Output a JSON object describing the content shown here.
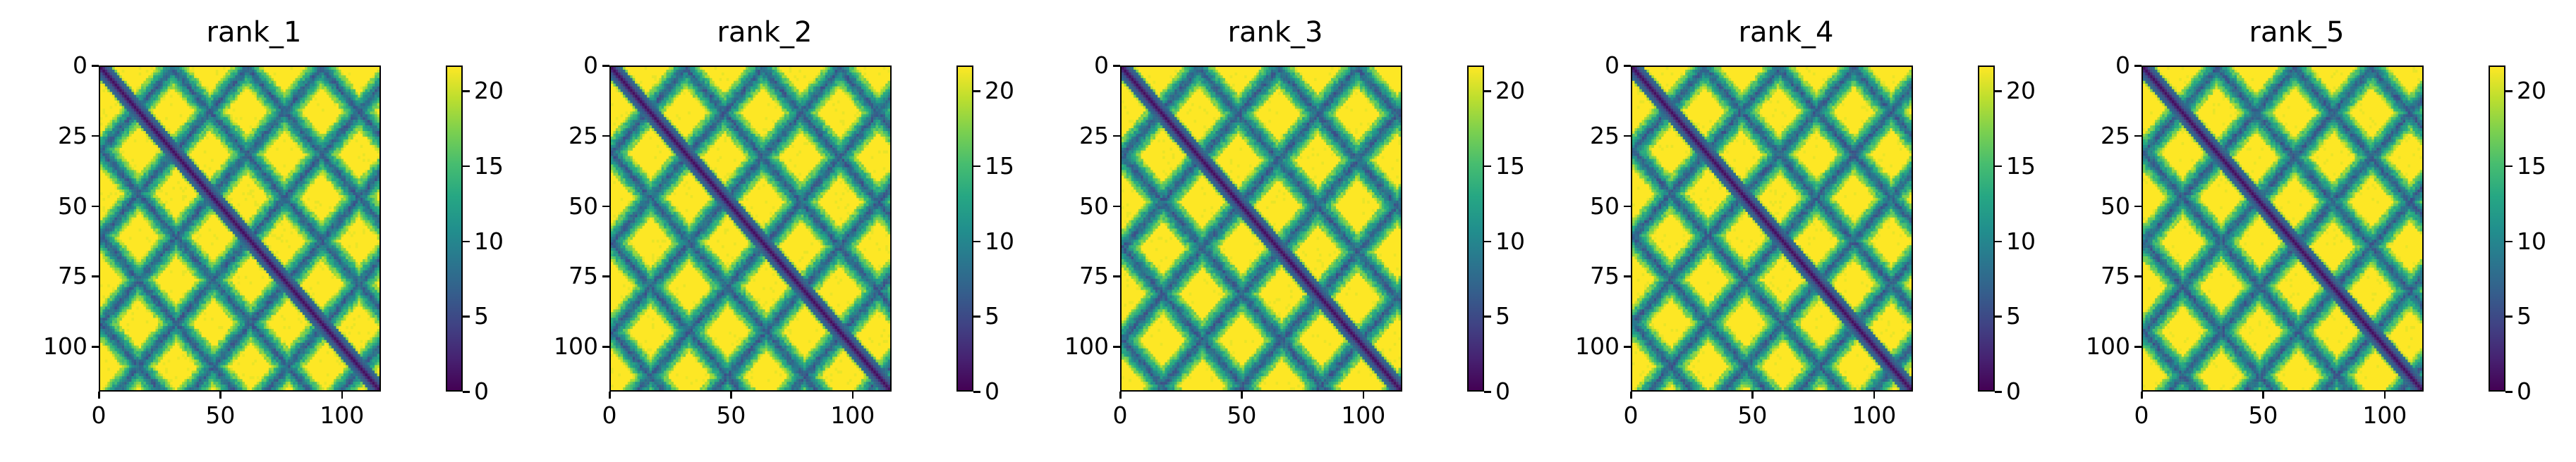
{
  "chart_data": [
    {
      "type": "heatmap",
      "title": "rank_1",
      "seed": 11,
      "x_ticks": [
        "0",
        "50",
        "100"
      ],
      "y_ticks": [
        "0",
        "25",
        "50",
        "75",
        "100"
      ],
      "colorbar_ticks": [
        "0",
        "5",
        "10",
        "15",
        "20"
      ],
      "xlim": [
        0,
        116
      ],
      "ylim": [
        116,
        0
      ],
      "vmin": 0,
      "vmax": 21.7,
      "size": 116,
      "colormap": "viridis"
    },
    {
      "type": "heatmap",
      "title": "rank_2",
      "seed": 23,
      "x_ticks": [
        "0",
        "50",
        "100"
      ],
      "y_ticks": [
        "0",
        "25",
        "50",
        "75",
        "100"
      ],
      "colorbar_ticks": [
        "0",
        "5",
        "10",
        "15",
        "20"
      ],
      "xlim": [
        0,
        116
      ],
      "ylim": [
        116,
        0
      ],
      "vmin": 0,
      "vmax": 21.7,
      "size": 116,
      "colormap": "viridis"
    },
    {
      "type": "heatmap",
      "title": "rank_3",
      "seed": 37,
      "x_ticks": [
        "0",
        "50",
        "100"
      ],
      "y_ticks": [
        "0",
        "25",
        "50",
        "75",
        "100"
      ],
      "colorbar_ticks": [
        "0",
        "5",
        "10",
        "15",
        "20"
      ],
      "xlim": [
        0,
        116
      ],
      "ylim": [
        116,
        0
      ],
      "vmin": 0,
      "vmax": 21.7,
      "size": 116,
      "colormap": "viridis"
    },
    {
      "type": "heatmap",
      "title": "rank_4",
      "seed": 41,
      "x_ticks": [
        "0",
        "50",
        "100"
      ],
      "y_ticks": [
        "0",
        "25",
        "50",
        "75",
        "100"
      ],
      "colorbar_ticks": [
        "0",
        "5",
        "10",
        "15",
        "20"
      ],
      "xlim": [
        0,
        116
      ],
      "ylim": [
        116,
        0
      ],
      "vmin": 0,
      "vmax": 21.7,
      "size": 116,
      "colormap": "viridis"
    },
    {
      "type": "heatmap",
      "title": "rank_5",
      "seed": 53,
      "x_ticks": [
        "0",
        "50",
        "100"
      ],
      "y_ticks": [
        "0",
        "25",
        "50",
        "75",
        "100"
      ],
      "colorbar_ticks": [
        "0",
        "5",
        "10",
        "15",
        "20"
      ],
      "xlim": [
        0,
        116
      ],
      "ylim": [
        116,
        0
      ],
      "vmin": 0,
      "vmax": 21.7,
      "size": 116,
      "colormap": "viridis"
    }
  ],
  "colors": {
    "viridis_low": "#440154",
    "viridis_mid": "#21918c",
    "viridis_high": "#fde725"
  }
}
